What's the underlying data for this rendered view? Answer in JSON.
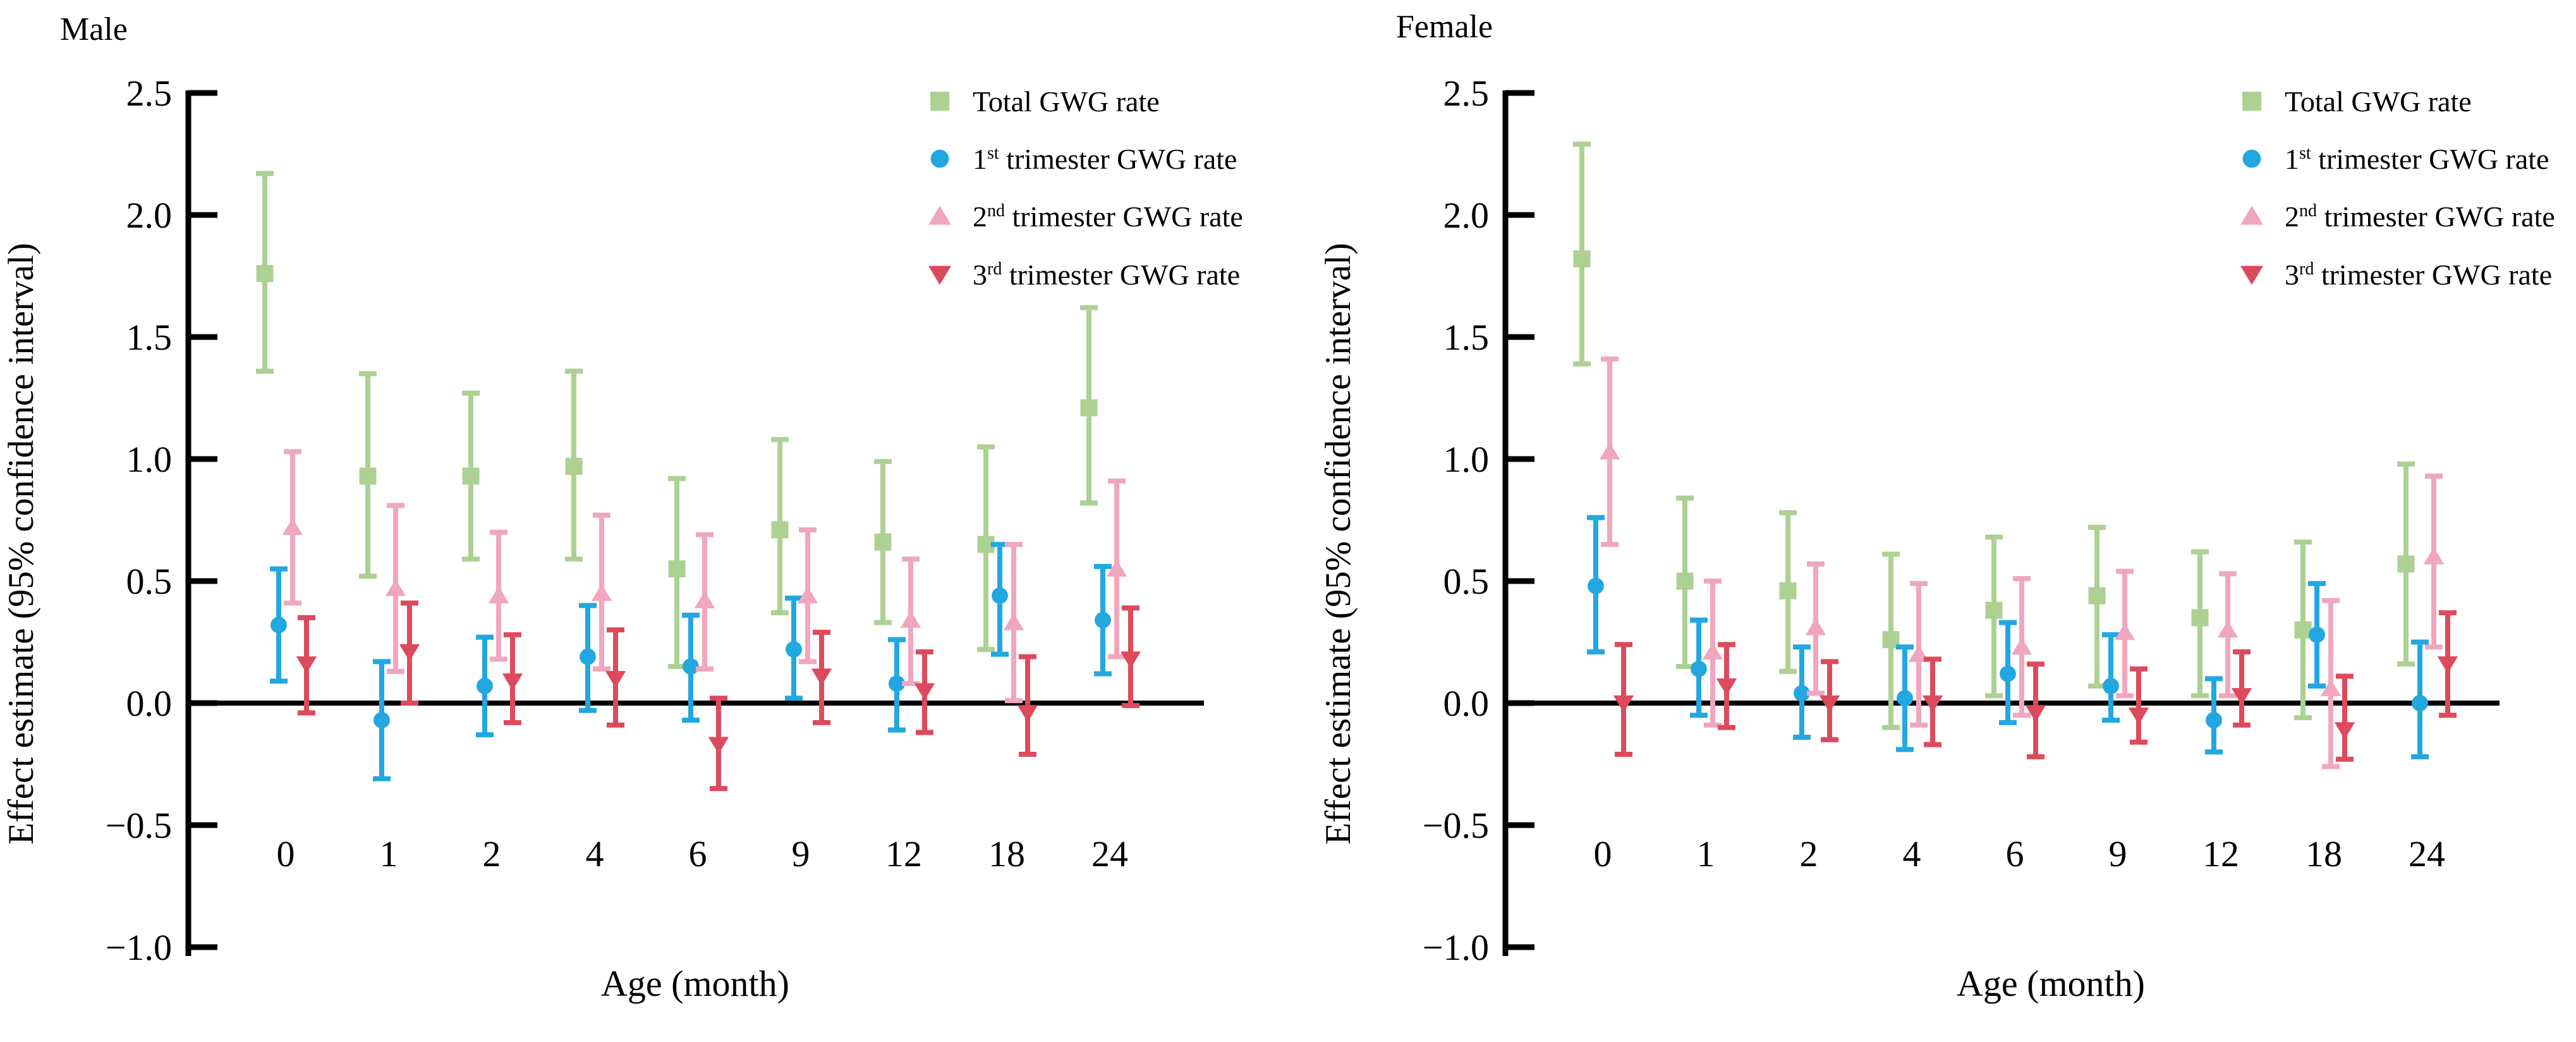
{
  "page": {
    "background": "#ffffff"
  },
  "legend": {
    "items": [
      {
        "id": "total",
        "base": "Total GWG rate",
        "sup": "",
        "rest": "",
        "marker": "square",
        "color": "#acd193"
      },
      {
        "id": "t1",
        "base": "1",
        "sup": "st",
        "rest": " trimester GWG rate",
        "marker": "circle",
        "color": "#23a7e0"
      },
      {
        "id": "t2",
        "base": "2",
        "sup": "nd",
        "rest": " trimester GWG rate",
        "marker": "triangle-up",
        "color": "#f1a6c0"
      },
      {
        "id": "t3",
        "base": "3",
        "sup": "rd",
        "rest": " trimester GWG rate",
        "marker": "triangle-down",
        "color": "#dd4a5c"
      }
    ]
  },
  "chart_data": [
    {
      "type": "errorbar",
      "title": "Male",
      "xlabel": "Age (month)",
      "ylabel": "Effect estimate (95% confidence interval)",
      "ylim": [
        -1.0,
        2.5
      ],
      "yticks": [
        {
          "label": "2.5",
          "value": 2.5
        },
        {
          "label": "2.0",
          "value": 2.0
        },
        {
          "label": "1.5",
          "value": 1.5
        },
        {
          "label": "1.0",
          "value": 1.0
        },
        {
          "label": "0.5",
          "value": 0.5
        },
        {
          "label": "0.0",
          "value": 0.0
        },
        {
          "label": "−0.5",
          "value": -0.5
        },
        {
          "label": "−1.0",
          "value": -1.0
        }
      ],
      "categories": [
        "0",
        "1",
        "2",
        "4",
        "6",
        "9",
        "12",
        "18",
        "24"
      ],
      "grid": false,
      "legend_position": "top-right",
      "series": [
        {
          "name": "Total GWG rate",
          "marker": "square",
          "color": "#acd193",
          "points": [
            [
              1.76,
              1.36,
              2.17
            ],
            [
              0.93,
              0.52,
              1.35
            ],
            [
              0.93,
              0.59,
              1.27
            ],
            [
              0.97,
              0.59,
              1.36
            ],
            [
              0.55,
              0.15,
              0.92
            ],
            [
              0.71,
              0.37,
              1.08
            ],
            [
              0.66,
              0.33,
              0.99
            ],
            [
              0.65,
              0.22,
              1.05
            ],
            [
              1.21,
              0.82,
              1.62
            ]
          ]
        },
        {
          "name": "1st trimester GWG rate",
          "marker": "circle",
          "color": "#23a7e0",
          "points": [
            [
              0.32,
              0.09,
              0.55
            ],
            [
              -0.07,
              -0.31,
              0.17
            ],
            [
              0.07,
              -0.13,
              0.27
            ],
            [
              0.19,
              -0.03,
              0.4
            ],
            [
              0.15,
              -0.07,
              0.36
            ],
            [
              0.22,
              0.02,
              0.43
            ],
            [
              0.08,
              -0.11,
              0.26
            ],
            [
              0.44,
              0.2,
              0.65
            ],
            [
              0.34,
              0.12,
              0.56
            ]
          ]
        },
        {
          "name": "2nd trimester GWG rate",
          "marker": "triangle-up",
          "color": "#f1a6c0",
          "points": [
            [
              0.72,
              0.41,
              1.03
            ],
            [
              0.47,
              0.13,
              0.81
            ],
            [
              0.44,
              0.18,
              0.7
            ],
            [
              0.45,
              0.14,
              0.77
            ],
            [
              0.42,
              0.14,
              0.69
            ],
            [
              0.44,
              0.17,
              0.71
            ],
            [
              0.34,
              0.08,
              0.59
            ],
            [
              0.33,
              0.01,
              0.65
            ],
            [
              0.55,
              0.19,
              0.91
            ]
          ]
        },
        {
          "name": "3rd trimester GWG rate",
          "marker": "triangle-down",
          "color": "#dd4a5c",
          "points": [
            [
              0.16,
              -0.04,
              0.35
            ],
            [
              0.21,
              0.0,
              0.41
            ],
            [
              0.09,
              -0.08,
              0.28
            ],
            [
              0.1,
              -0.09,
              0.3
            ],
            [
              -0.17,
              -0.35,
              0.02
            ],
            [
              0.11,
              -0.08,
              0.29
            ],
            [
              0.05,
              -0.12,
              0.21
            ],
            [
              -0.04,
              -0.21,
              0.19
            ],
            [
              0.18,
              -0.01,
              0.39
            ]
          ]
        }
      ]
    },
    {
      "type": "errorbar",
      "title": "Female",
      "xlabel": "Age (month)",
      "ylabel": "Effect estimate (95% confidence interval)",
      "ylim": [
        -1.0,
        2.5
      ],
      "yticks": [
        {
          "label": "2.5",
          "value": 2.5
        },
        {
          "label": "2.0",
          "value": 2.0
        },
        {
          "label": "1.5",
          "value": 1.5
        },
        {
          "label": "1.0",
          "value": 1.0
        },
        {
          "label": "0.5",
          "value": 0.5
        },
        {
          "label": "0.0",
          "value": 0.0
        },
        {
          "label": "−0.5",
          "value": -0.5
        },
        {
          "label": "−1.0",
          "value": -1.0
        }
      ],
      "categories": [
        "0",
        "1",
        "2",
        "4",
        "6",
        "9",
        "12",
        "18",
        "24"
      ],
      "grid": false,
      "legend_position": "top-right",
      "series": [
        {
          "name": "Total GWG rate",
          "marker": "square",
          "color": "#acd193",
          "points": [
            [
              1.82,
              1.39,
              2.29
            ],
            [
              0.5,
              0.15,
              0.84
            ],
            [
              0.46,
              0.13,
              0.78
            ],
            [
              0.26,
              -0.1,
              0.61
            ],
            [
              0.38,
              0.03,
              0.68
            ],
            [
              0.44,
              0.07,
              0.72
            ],
            [
              0.35,
              0.03,
              0.62
            ],
            [
              0.3,
              -0.06,
              0.66
            ],
            [
              0.57,
              0.16,
              0.98
            ]
          ]
        },
        {
          "name": "1st trimester GWG rate",
          "marker": "circle",
          "color": "#23a7e0",
          "points": [
            [
              0.48,
              0.21,
              0.76
            ],
            [
              0.14,
              -0.05,
              0.34
            ],
            [
              0.04,
              -0.14,
              0.23
            ],
            [
              0.02,
              -0.19,
              0.23
            ],
            [
              0.12,
              -0.08,
              0.33
            ],
            [
              0.07,
              -0.07,
              0.28
            ],
            [
              -0.07,
              -0.2,
              0.1
            ],
            [
              0.28,
              0.07,
              0.49
            ],
            [
              0.0,
              -0.22,
              0.25
            ]
          ]
        },
        {
          "name": "2nd trimester GWG rate",
          "marker": "triangle-up",
          "color": "#f1a6c0",
          "points": [
            [
              1.03,
              0.65,
              1.41
            ],
            [
              0.21,
              -0.09,
              0.5
            ],
            [
              0.31,
              0.04,
              0.57
            ],
            [
              0.2,
              -0.09,
              0.49
            ],
            [
              0.23,
              -0.05,
              0.51
            ],
            [
              0.29,
              0.03,
              0.54
            ],
            [
              0.3,
              0.03,
              0.53
            ],
            [
              0.06,
              -0.26,
              0.42
            ],
            [
              0.6,
              0.23,
              0.93
            ]
          ]
        },
        {
          "name": "3rd trimester GWG rate",
          "marker": "triangle-down",
          "color": "#dd4a5c",
          "points": [
            [
              0.0,
              -0.21,
              0.24
            ],
            [
              0.07,
              -0.1,
              0.24
            ],
            [
              0.0,
              -0.15,
              0.17
            ],
            [
              0.0,
              -0.17,
              0.18
            ],
            [
              -0.04,
              -0.22,
              0.16
            ],
            [
              -0.05,
              -0.16,
              0.14
            ],
            [
              0.03,
              -0.09,
              0.21
            ],
            [
              -0.11,
              -0.23,
              0.11
            ],
            [
              0.16,
              -0.05,
              0.37
            ]
          ]
        }
      ]
    }
  ]
}
